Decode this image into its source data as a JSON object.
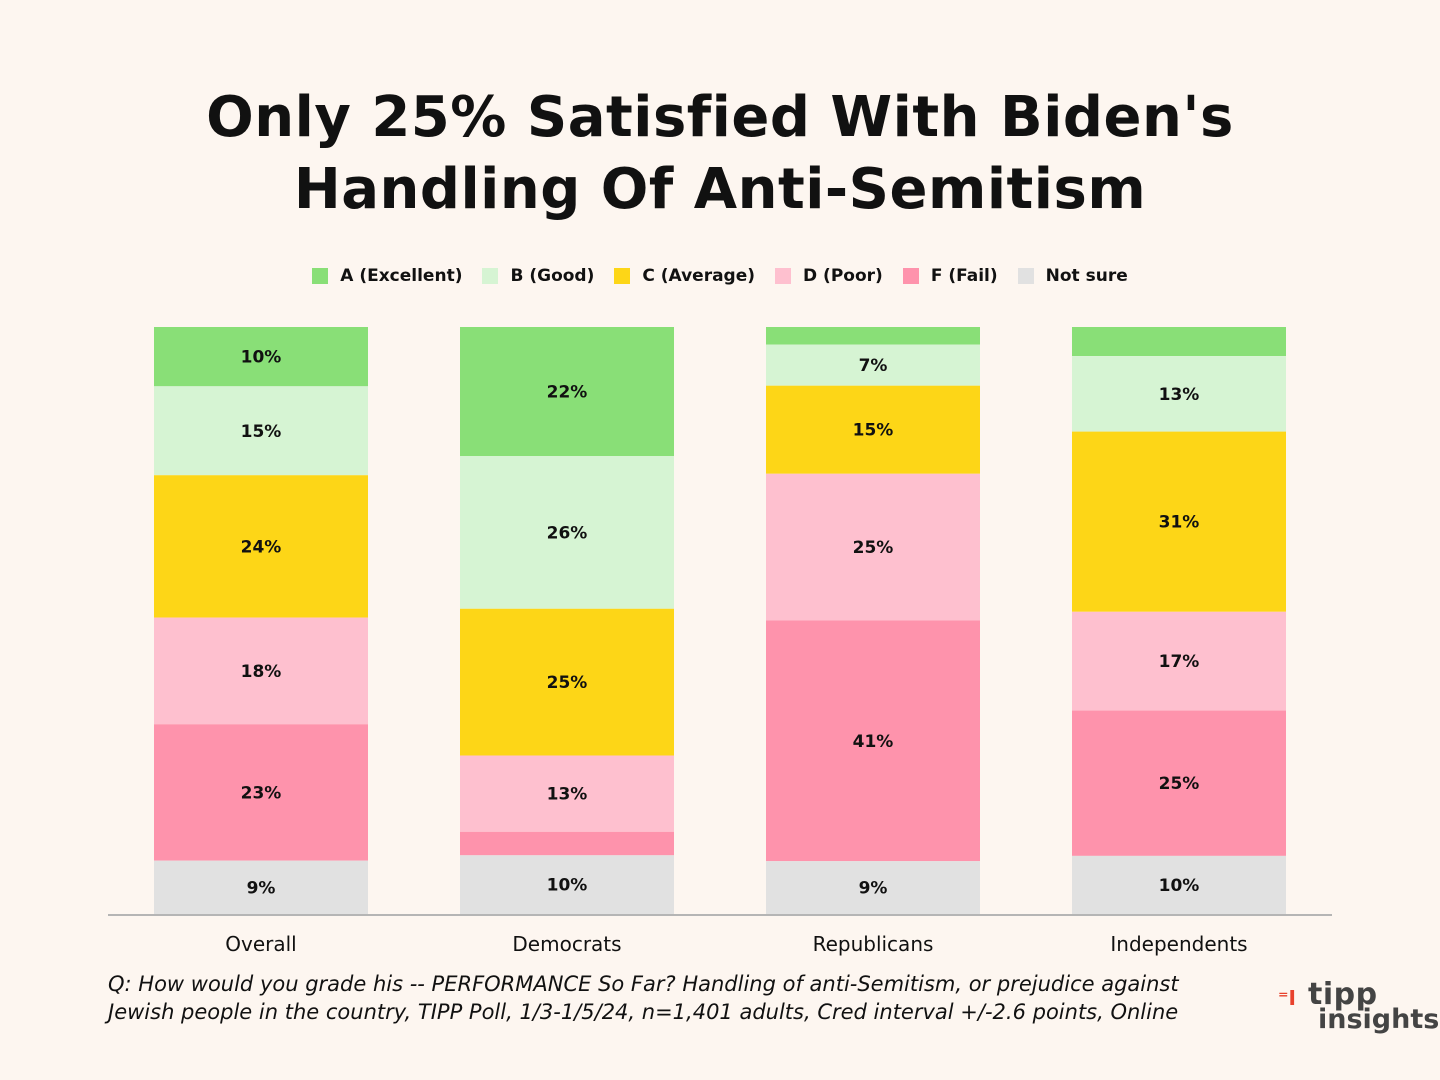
{
  "page": {
    "title": "Only 25% Satisfied With Biden's Handling Of Anti-Semitism",
    "footnote": "Q:  How would you grade his -- PERFORMANCE So Far? Handling of anti-Semitism, or prejudice against Jewish people in the country, TIPP Poll, 1/3-1/5/24, n=1,401 adults, Cred interval +/-2.6 points, Online",
    "logo": {
      "line1": "tipp",
      "line2": "insights",
      "glyph": "⁼I"
    }
  },
  "chart_data": {
    "type": "bar",
    "stacked": true,
    "title": "Only 25% Satisfied With Biden's Handling Of Anti-Semitism",
    "categories": [
      "Overall",
      "Democrats",
      "Republicans",
      "Independents"
    ],
    "series": [
      {
        "name": "A (Excellent)",
        "color": "#89df77",
        "values": [
          10,
          22,
          3,
          5
        ],
        "labels": [
          "10%",
          "22%",
          "",
          ""
        ]
      },
      {
        "name": "B (Good)",
        "color": "#d6f4d3",
        "values": [
          15,
          26,
          7,
          13
        ],
        "labels": [
          "15%",
          "26%",
          "7%",
          "13%"
        ]
      },
      {
        "name": "C (Average)",
        "color": "#fdd617",
        "values": [
          24,
          25,
          15,
          31
        ],
        "labels": [
          "24%",
          "25%",
          "15%",
          "31%"
        ]
      },
      {
        "name": "D (Poor)",
        "color": "#fec0cf",
        "values": [
          18,
          13,
          25,
          17
        ],
        "labels": [
          "18%",
          "13%",
          "25%",
          "17%"
        ]
      },
      {
        "name": "F (Fail)",
        "color": "#fe93ac",
        "values": [
          23,
          4,
          41,
          25
        ],
        "labels": [
          "23%",
          "",
          "41%",
          "25%"
        ]
      },
      {
        "name": "Not sure",
        "color": "#e1e1e1",
        "values": [
          9,
          10,
          9,
          10
        ],
        "labels": [
          "9%",
          "10%",
          "9%",
          "10%"
        ]
      }
    ],
    "ylim": [
      0,
      100
    ],
    "xlabel": "",
    "ylabel": "",
    "grid": false,
    "legend": "top-center"
  }
}
